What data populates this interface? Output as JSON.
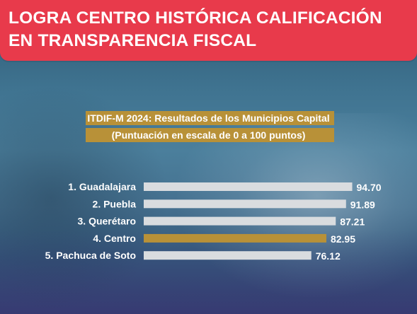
{
  "headline": "LOGRA CENTRO HISTÓRICA CALIFICACIÓN\nEN TRANSPARENCIA FISCAL",
  "chart_data": {
    "type": "bar",
    "orientation": "horizontal",
    "title": "ITDIF-M 2024: Resultados de los Municipios Capital",
    "subtitle": "(Puntuación en escala de 0 a 100 puntos)",
    "categories": [
      "1. Guadalajara",
      "2. Puebla",
      "3. Querétaro",
      "4. Centro",
      "5. Pachuca de Soto"
    ],
    "values": [
      94.7,
      91.89,
      87.21,
      82.95,
      76.12
    ],
    "value_labels": [
      "94.70",
      "91.89",
      "87.21",
      "82.95",
      "76.12"
    ],
    "highlight_index": 3,
    "xlim": [
      0,
      100
    ],
    "grid": false,
    "legend": "none",
    "colors": {
      "bar": "#d9dcdf",
      "highlight_bar": "#b89138",
      "label": "#ffffff",
      "highlight_label": "#e8b64c"
    }
  },
  "colors": {
    "banner": "#e83a4b",
    "subtitle_box": "#b89138"
  }
}
